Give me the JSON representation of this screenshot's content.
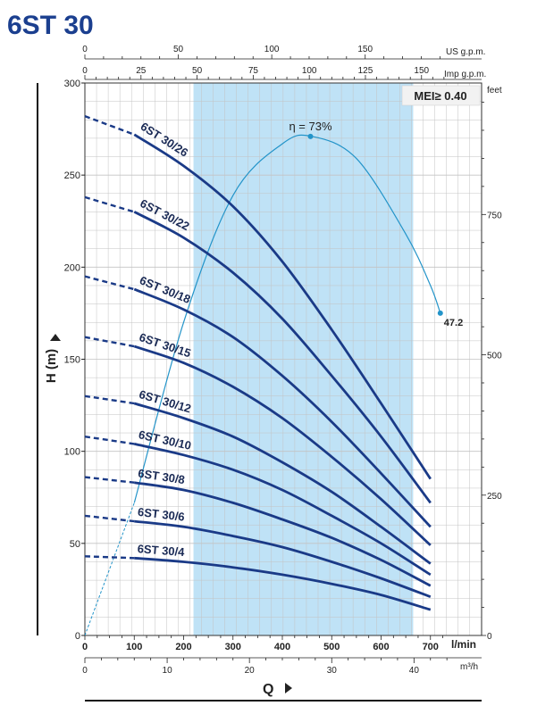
{
  "title": "6ST 30",
  "chart_data": {
    "type": "line",
    "badge": "MEI≥ 0.40",
    "y_axis": {
      "label": "H (m)",
      "range": [
        0,
        300
      ],
      "ticks": [
        0,
        50,
        100,
        150,
        200,
        250,
        300
      ]
    },
    "feet_axis": {
      "label": "feet",
      "ticks": [
        0,
        250,
        500,
        750
      ]
    },
    "x_axis_lmin": {
      "label": "l/min",
      "range": [
        0,
        746
      ],
      "ticks": [
        0,
        100,
        200,
        300,
        400,
        500,
        600,
        700
      ]
    },
    "x_axis_m3h": {
      "label": "m³/h",
      "ticks": [
        0,
        10,
        20,
        30,
        40
      ]
    },
    "x_axis_us": {
      "label": "US g.p.m.",
      "ticks": [
        0,
        50,
        100,
        150
      ]
    },
    "x_axis_imp": {
      "label": "Imp g.p.m.",
      "ticks": [
        0,
        25,
        50,
        75,
        100,
        125,
        150
      ]
    },
    "q_label": "Q",
    "recommended_range_lmin": [
      220,
      665
    ],
    "series": [
      {
        "name": "6ST 30/26",
        "x": [
          0,
          100,
          200,
          300,
          400,
          500,
          600,
          700
        ],
        "y": [
          282,
          272,
          255,
          233,
          203,
          166,
          126,
          85
        ]
      },
      {
        "name": "6ST 30/22",
        "x": [
          0,
          100,
          200,
          300,
          400,
          500,
          600,
          700
        ],
        "y": [
          238,
          230,
          216,
          197,
          172,
          141,
          108,
          72
        ]
      },
      {
        "name": "6ST 30/18",
        "x": [
          0,
          100,
          200,
          300,
          400,
          500,
          600,
          700
        ],
        "y": [
          195,
          188,
          177,
          162,
          141,
          116,
          88,
          59
        ]
      },
      {
        "name": "6ST 30/15",
        "x": [
          0,
          100,
          200,
          300,
          400,
          500,
          600,
          700
        ],
        "y": [
          162,
          157,
          148,
          135,
          118,
          97,
          74,
          49
        ]
      },
      {
        "name": "6ST 30/12",
        "x": [
          0,
          100,
          200,
          300,
          400,
          500,
          600,
          700
        ],
        "y": [
          130,
          126,
          118,
          108,
          94,
          78,
          59,
          39
        ]
      },
      {
        "name": "6ST 30/10",
        "x": [
          0,
          100,
          200,
          300,
          400,
          500,
          600,
          700
        ],
        "y": [
          108,
          104,
          98,
          90,
          79,
          65,
          50,
          33
        ]
      },
      {
        "name": "6ST 30/8",
        "x": [
          0,
          100,
          200,
          300,
          400,
          500,
          600,
          700
        ],
        "y": [
          86,
          83,
          79,
          72,
          63,
          53,
          41,
          27
        ]
      },
      {
        "name": "6ST 30/6",
        "x": [
          0,
          100,
          200,
          300,
          400,
          500,
          600,
          700
        ],
        "y": [
          65,
          62,
          59,
          54,
          48,
          40,
          31,
          21
        ]
      },
      {
        "name": "6ST 30/4",
        "x": [
          0,
          100,
          200,
          300,
          400,
          500,
          600,
          700
        ],
        "y": [
          43,
          42,
          40,
          37,
          33,
          28,
          22,
          14
        ]
      }
    ],
    "efficiency_curve": {
      "x": [
        0,
        100,
        200,
        300,
        400,
        460,
        550,
        650,
        700,
        720
      ],
      "y": [
        0,
        72,
        170,
        239,
        267,
        271,
        259,
        218,
        190,
        175
      ],
      "peak_label": "η = 73%",
      "peak": [
        457,
        271
      ],
      "end_label": "47.2",
      "end": [
        720,
        175
      ]
    },
    "colors": {
      "curve": "#1a3a87",
      "efficiency": "#2394c9",
      "band": "#bfe2f6",
      "grid": "#c3c3c3",
      "title": "#1b3f8f"
    }
  }
}
